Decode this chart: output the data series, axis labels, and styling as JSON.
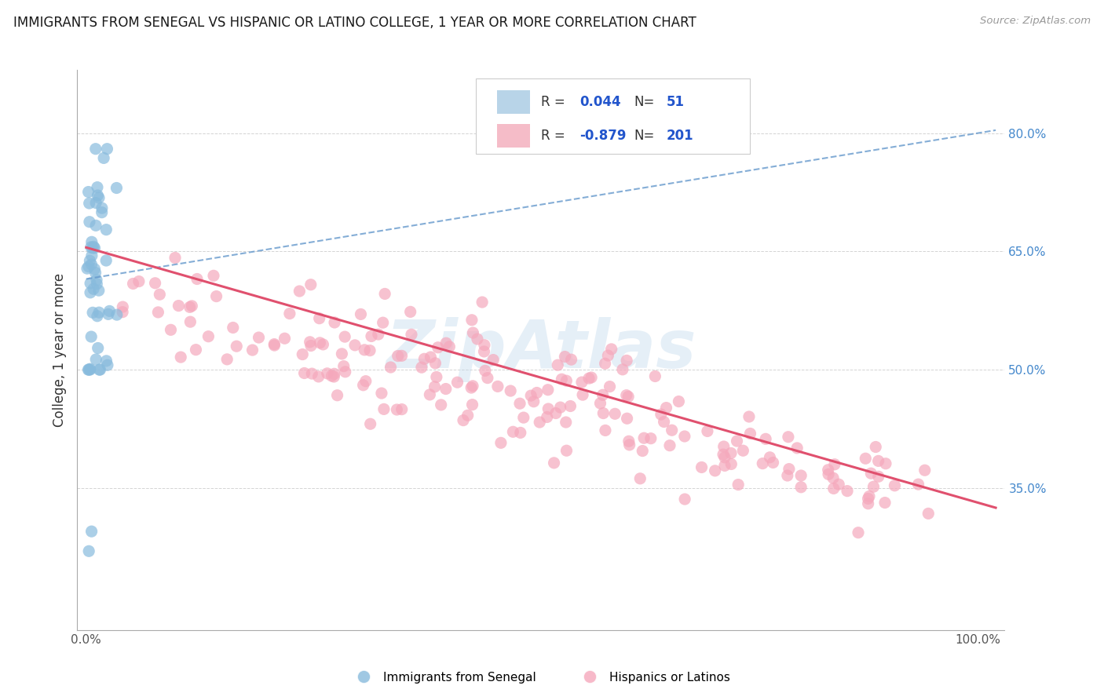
{
  "title": "IMMIGRANTS FROM SENEGAL VS HISPANIC OR LATINO COLLEGE, 1 YEAR OR MORE CORRELATION CHART",
  "source_text": "Source: ZipAtlas.com",
  "ylabel": "College, 1 year or more",
  "watermark": "ZipAtlas",
  "blue_R": "0.044",
  "blue_N": "51",
  "pink_R": "-0.879",
  "pink_N": "201",
  "blue_scatter_color": "#88bbdd",
  "pink_scatter_color": "#f5a8bc",
  "blue_line_color": "#6699cc",
  "pink_line_color": "#e0506e",
  "blue_patch_color": "#b8d4e8",
  "pink_patch_color": "#f5bcc8",
  "right_ytick_color": "#4488cc",
  "title_color": "#1a1a1a",
  "background": "#ffffff",
  "grid_color": "#d0d0d0",
  "legend_text_color": "#333333",
  "legend_value_color": "#2255cc"
}
